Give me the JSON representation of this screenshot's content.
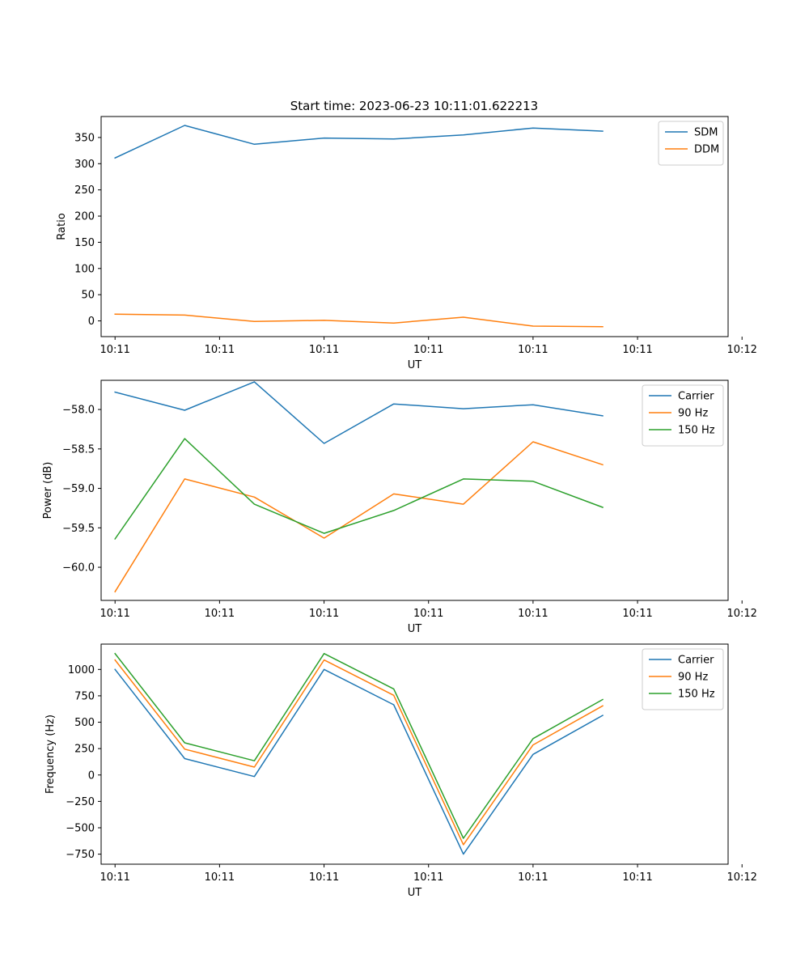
{
  "figure_title": "Start time: 2023-06-23 10:11:01.622213",
  "chart_data": [
    {
      "type": "line",
      "ylabel": "Ratio",
      "xlabel": "UT",
      "x": [
        1,
        2,
        3,
        4,
        5,
        6,
        7,
        8
      ],
      "xlim": [
        0.8,
        9.8
      ],
      "xticks": [
        1,
        2.5,
        4,
        5.5,
        7,
        8.5,
        10
      ],
      "x_tick_labels": [
        "10:11",
        "10:11",
        "10:11",
        "10:11",
        "10:11",
        "10:11",
        "10:12"
      ],
      "ylim": [
        -30,
        390
      ],
      "yticks": [
        0,
        50,
        100,
        150,
        200,
        250,
        300,
        350
      ],
      "legend_position": "upper right",
      "series": [
        {
          "name": "SDM",
          "color": "#1f77b4",
          "values": [
            311,
            373,
            337,
            349,
            347,
            355,
            368,
            362
          ]
        },
        {
          "name": "DDM",
          "color": "#ff7f0e",
          "values": [
            13,
            11,
            -1,
            1,
            -4,
            7,
            -10,
            -11
          ]
        }
      ]
    },
    {
      "type": "line",
      "ylabel": "Power (dB)",
      "xlabel": "UT",
      "x": [
        1,
        2,
        3,
        4,
        5,
        6,
        7,
        8
      ],
      "xlim": [
        0.8,
        9.8
      ],
      "xticks": [
        1,
        2.5,
        4,
        5.5,
        7,
        8.5,
        10
      ],
      "x_tick_labels": [
        "10:11",
        "10:11",
        "10:11",
        "10:11",
        "10:11",
        "10:11",
        "10:12"
      ],
      "ylim": [
        -60.42,
        -57.63
      ],
      "yticks": [
        -60.0,
        -59.5,
        -59.0,
        -58.5,
        -58.0
      ],
      "y_tick_labels": [
        "−60.0",
        "−59.5",
        "−59.0",
        "−58.5",
        "−58.0"
      ],
      "legend_position": "upper right",
      "series": [
        {
          "name": "Carrier",
          "color": "#1f77b4",
          "values": [
            -57.78,
            -58.01,
            -57.65,
            -58.43,
            -57.93,
            -57.99,
            -57.94,
            -58.08
          ]
        },
        {
          "name": "90 Hz",
          "color": "#ff7f0e",
          "values": [
            -60.31,
            -58.88,
            -59.11,
            -59.63,
            -59.07,
            -59.2,
            -58.41,
            -58.7
          ]
        },
        {
          "name": "150 Hz",
          "color": "#2ca02c",
          "values": [
            -59.64,
            -58.37,
            -59.2,
            -59.57,
            -59.28,
            -58.88,
            -58.91,
            -59.24
          ]
        }
      ]
    },
    {
      "type": "line",
      "ylabel": "Frequency (Hz)",
      "xlabel": "UT",
      "x": [
        1,
        2,
        3,
        4,
        5,
        6,
        7,
        8
      ],
      "xlim": [
        0.8,
        9.8
      ],
      "xticks": [
        1,
        2.5,
        4,
        5.5,
        7,
        8.5,
        10
      ],
      "x_tick_labels": [
        "10:11",
        "10:11",
        "10:11",
        "10:11",
        "10:11",
        "10:11",
        "10:12"
      ],
      "ylim": [
        -845,
        1240
      ],
      "yticks": [
        -750,
        -500,
        -250,
        0,
        250,
        500,
        750,
        1000
      ],
      "y_tick_labels": [
        "−750",
        "−500",
        "−250",
        "0",
        "250",
        "500",
        "750",
        "1000"
      ],
      "legend_position": "upper right",
      "series": [
        {
          "name": "Carrier",
          "color": "#1f77b4",
          "values": [
            1000,
            155,
            -15,
            1000,
            665,
            -750,
            195,
            565
          ]
        },
        {
          "name": "90 Hz",
          "color": "#ff7f0e",
          "values": [
            1090,
            245,
            75,
            1090,
            755,
            -660,
            285,
            655
          ]
        },
        {
          "name": "150 Hz",
          "color": "#2ca02c",
          "values": [
            1150,
            305,
            135,
            1150,
            815,
            -600,
            345,
            715
          ]
        }
      ]
    }
  ]
}
